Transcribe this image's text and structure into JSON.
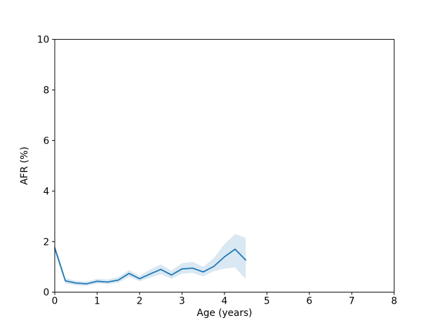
{
  "figure": {
    "background": "#ffffff"
  },
  "chart_data": {
    "type": "line",
    "title": "",
    "xlabel": "Age (years)",
    "ylabel": "AFR (%)",
    "xlim": [
      0,
      8
    ],
    "ylim": [
      0,
      10
    ],
    "xticks": [
      0,
      1,
      2,
      3,
      4,
      5,
      6,
      7,
      8
    ],
    "yticks": [
      0,
      2,
      4,
      6,
      8,
      10
    ],
    "grid": false,
    "legend_position": "none",
    "series": [
      {
        "name": "afr",
        "color": "#1f77b4",
        "x": [
          0,
          0.25,
          0.5,
          0.75,
          1,
          1.25,
          1.5,
          1.75,
          2,
          2.25,
          2.5,
          2.75,
          3,
          3.25,
          3.5,
          3.75,
          4,
          4.25,
          4.5
        ],
        "y": [
          1.75,
          0.45,
          0.36,
          0.33,
          0.43,
          0.4,
          0.48,
          0.74,
          0.53,
          0.72,
          0.9,
          0.68,
          0.92,
          0.95,
          0.8,
          1.02,
          1.4,
          1.7,
          1.27
        ]
      }
    ],
    "band": {
      "name": "confidence-band",
      "color": "#1f77b4",
      "opacity": 0.17,
      "x": [
        0,
        0.25,
        0.5,
        0.75,
        1,
        1.25,
        1.5,
        1.75,
        2,
        2.25,
        2.5,
        2.75,
        3,
        3.25,
        3.5,
        3.75,
        4,
        4.25,
        4.5
      ],
      "upper": [
        1.9,
        0.56,
        0.45,
        0.42,
        0.53,
        0.5,
        0.6,
        0.88,
        0.65,
        0.9,
        1.1,
        0.85,
        1.15,
        1.2,
        1.0,
        1.35,
        1.9,
        2.3,
        2.15
      ],
      "lower": [
        1.6,
        0.34,
        0.27,
        0.25,
        0.34,
        0.31,
        0.38,
        0.6,
        0.43,
        0.57,
        0.71,
        0.53,
        0.73,
        0.76,
        0.62,
        0.83,
        0.93,
        0.98,
        0.52
      ]
    },
    "axes_color": "#000000",
    "tick_font_size": 14,
    "label_font_size": 14
  }
}
